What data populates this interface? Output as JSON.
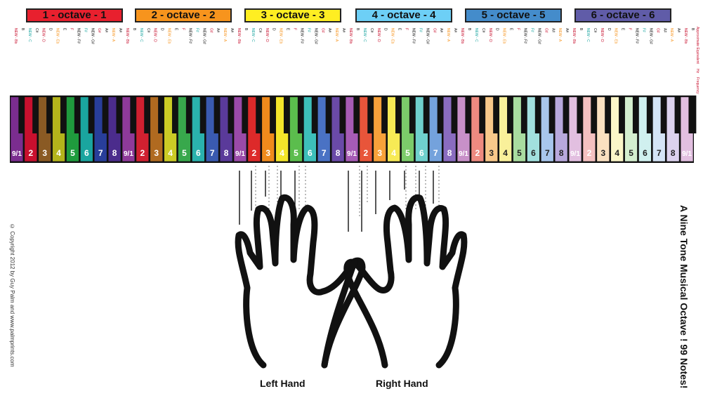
{
  "octaves": [
    {
      "label": "1 - octave - 1",
      "color": "#e8202e"
    },
    {
      "label": "2 - octave - 2",
      "color": "#f7941d"
    },
    {
      "label": "3 - octave - 3",
      "color": "#ffee22"
    },
    {
      "label": "4 - octave - 4",
      "color": "#6dcff6"
    },
    {
      "label": "5 - octave - 5",
      "color": "#448ccb"
    },
    {
      "label": "6 - octave - 6",
      "color": "#605ca8"
    }
  ],
  "header_labels": {
    "equivalent": "Approximate Equivalent",
    "hz": "Hz",
    "frequency": "Frequency"
  },
  "note_names": [
    "NEW - Bb",
    "B",
    "NEW - C",
    "C#",
    "NEW - D",
    "D",
    "NEW - Eb",
    "E",
    "F",
    "NEW - F#",
    "F#",
    "NEW - G#",
    "G#",
    "A#",
    "NEW - A",
    "A#"
  ],
  "key_numbers": [
    "9/1",
    "2",
    "3",
    "4",
    "5",
    "6",
    "7",
    "8"
  ],
  "key_colors": [
    "#6b2a8c",
    "#c8102e",
    "#7a4a1f",
    "#a8a815",
    "#1e9a3c",
    "#1aa5a0",
    "#2a3f9c",
    "#4a2a8a"
  ],
  "left_hand_label": "Left Hand",
  "right_hand_label": "Right Hand",
  "side_title": "A Nine Tone Musical Octave ! 99 Notes!",
  "copyright": "© Copyright 2012 by Guy Palm and www.palmprints.com"
}
